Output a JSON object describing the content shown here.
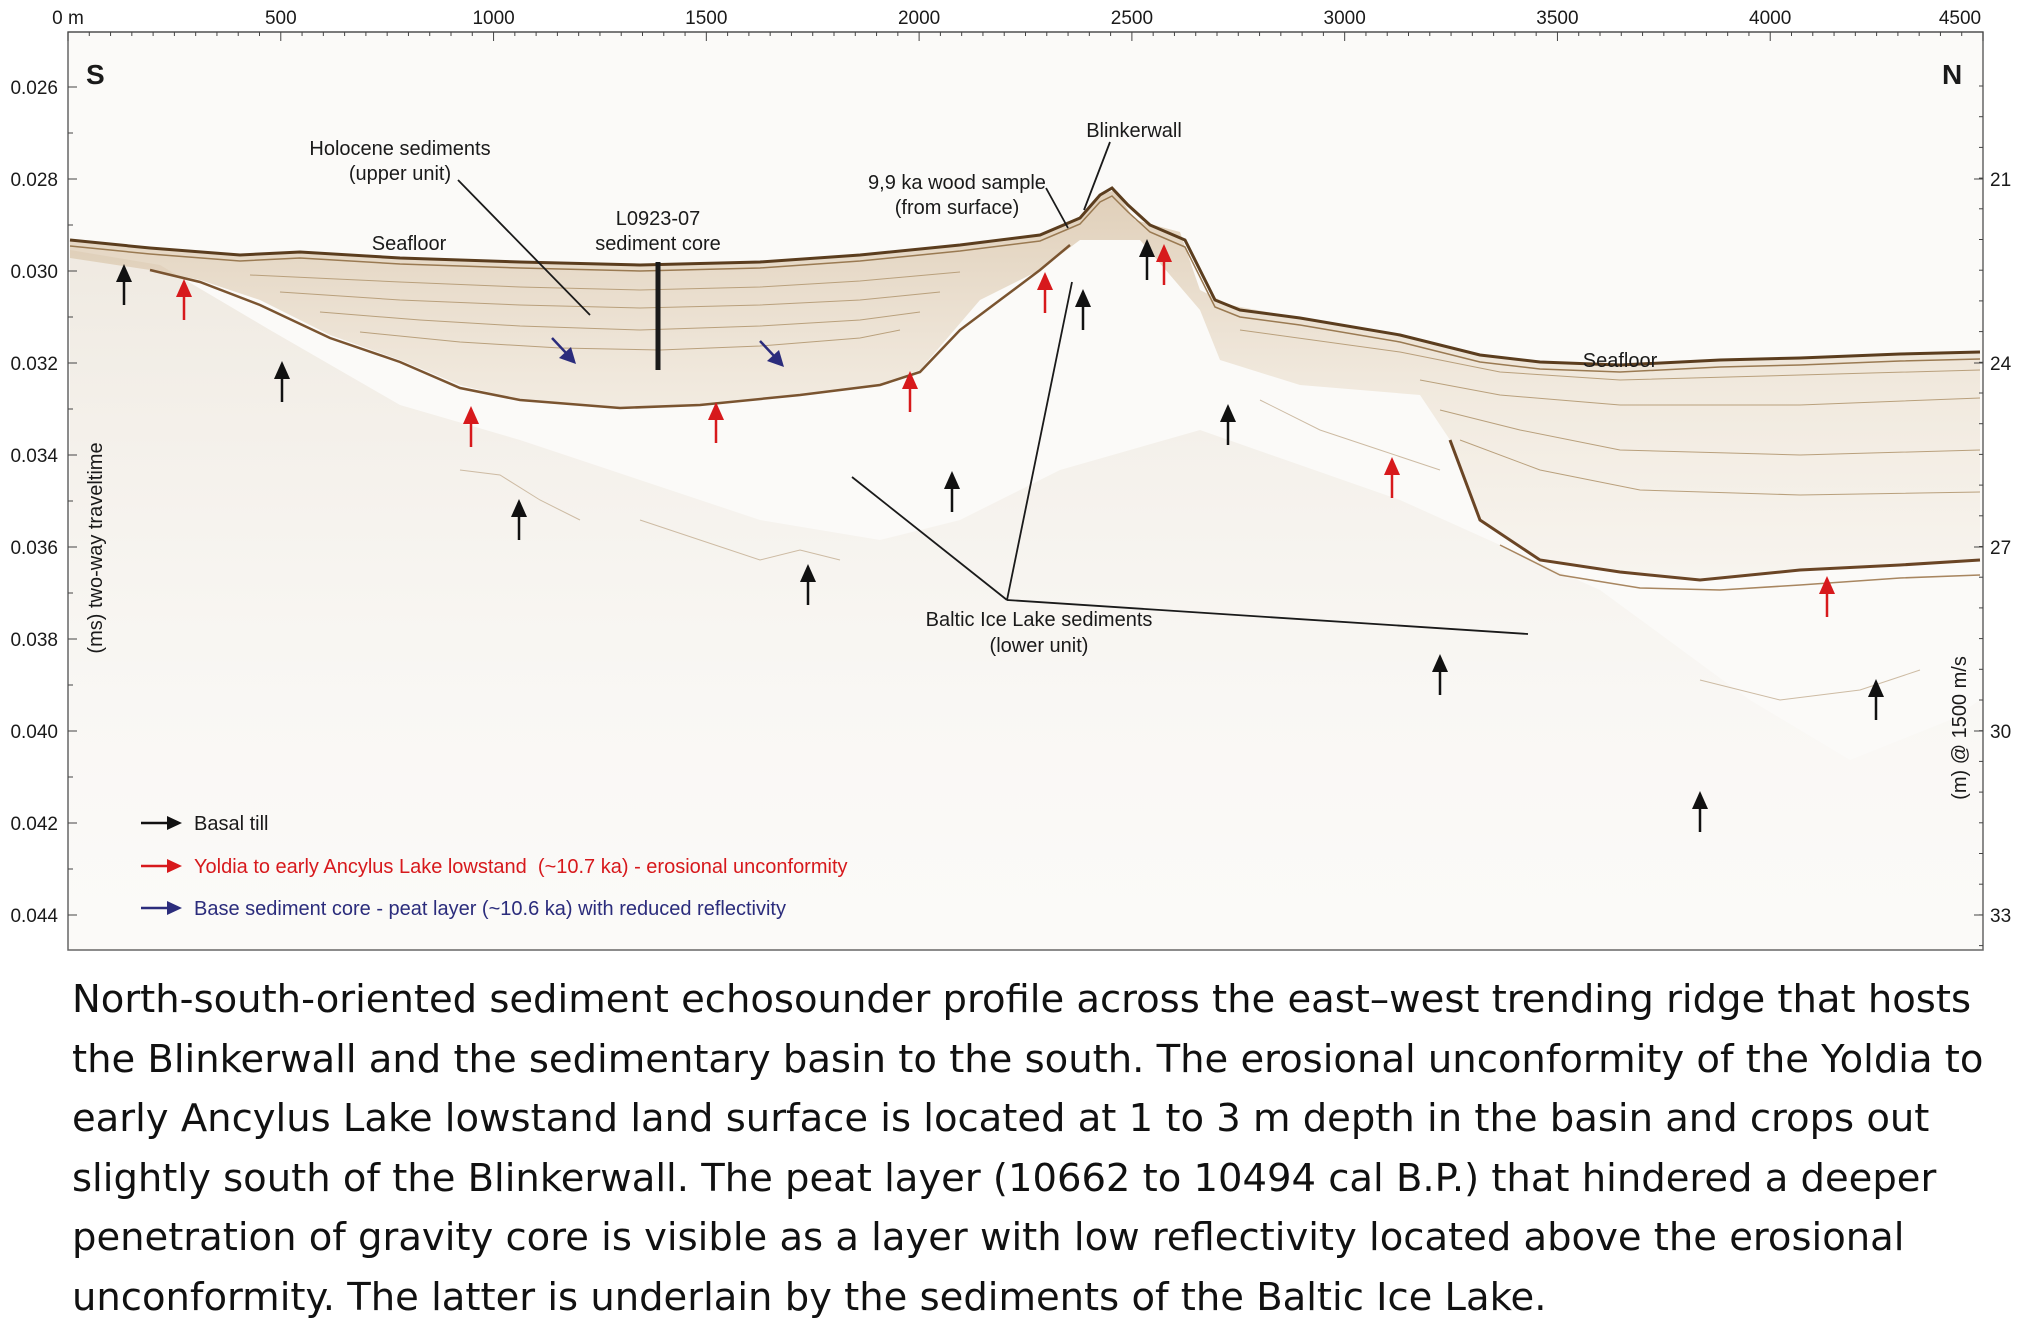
{
  "figure": {
    "direction_left": "S",
    "direction_right": "N",
    "top_axis": {
      "unit_label": "0 m",
      "ticks": [
        "500",
        "1000",
        "1500",
        "2000",
        "2500",
        "3000",
        "3500",
        "4000",
        "4500"
      ],
      "range": [
        0,
        4500
      ]
    },
    "left_axis": {
      "label": "(ms) two-way traveltime",
      "ticks": [
        "0.026",
        "0.028",
        "0.030",
        "0.032",
        "0.034",
        "0.036",
        "0.038",
        "0.040",
        "0.042",
        "0.044"
      ],
      "range": [
        0.025,
        0.0448
      ]
    },
    "right_axis": {
      "label": "(m) @ 1500 m/s",
      "ticks": [
        "21",
        "24",
        "27",
        "30",
        "33"
      ]
    },
    "annotations": {
      "holocene_line1": "Holocene sediments",
      "holocene_line2": "(upper unit)",
      "core_line1": "L0923-07",
      "core_line2": "sediment core",
      "seafloor_left": "Seafloor",
      "seafloor_right": "Seafloor",
      "blinkerwall": "Blinkerwall",
      "wood_line1": "9,9 ka wood sample",
      "wood_line2": "(from surface)",
      "baltic_line1": "Baltic Ice Lake sediments",
      "baltic_line2": "(lower unit)"
    },
    "legend": [
      {
        "label": "Basal till",
        "color": "#111111"
      },
      {
        "label": "Yoldia to early Ancylus Lake lowstand  (~10.7 ka) - erosional unconformity",
        "color": "#d7191c"
      },
      {
        "label": "Base sediment core - peat layer (~10.6 ka) with reduced reflectivity",
        "color": "#2b2c7c"
      }
    ]
  },
  "caption": "North-south-oriented sediment echosounder profile across the east–west trending ridge that hosts the Blinkerwall and the sedimentary basin to the south. The erosional unconformity of the Yoldia to early Ancylus Lake lowstand land surface is located at 1 to 3 m depth in the basin and crops out slightly south of the Blinkerwall. The peat layer (10662 to 10494 cal B.P.) that hindered a deeper penetration of gravity core is visible as a layer with low reflectivity located above the erosional unconformity. The latter is underlain by the sediments of the Baltic Ice Lake."
}
